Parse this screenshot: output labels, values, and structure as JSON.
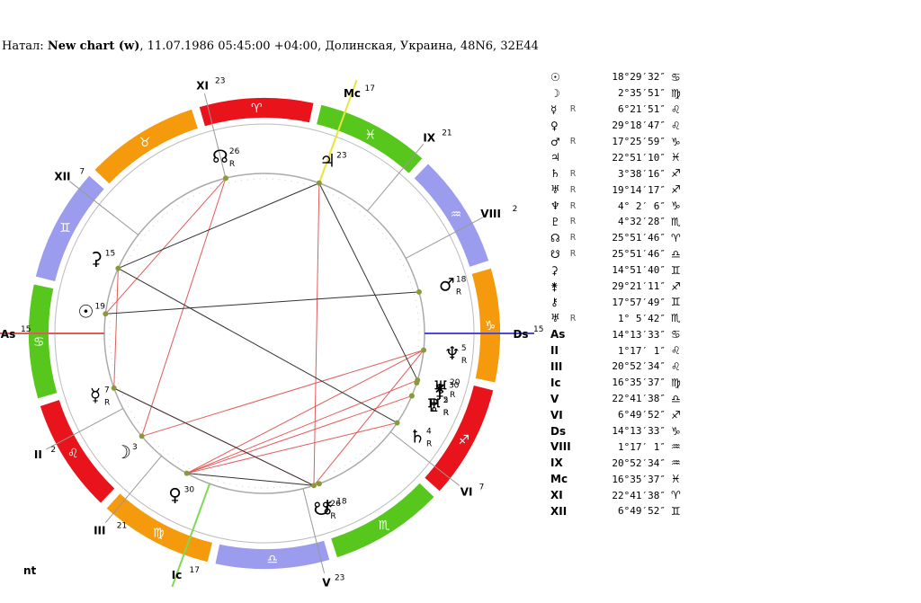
{
  "header": {
    "prefix": "Натал: ",
    "name": "New chart (w)",
    "details": ", 11.07.1986 05:45:00 +04:00, Долинская, Украина, 48N6, 32E44"
  },
  "footer": "nt",
  "colors": {
    "fire": "#e8131b",
    "earth": "#f59a0c",
    "air": "#9c9cee",
    "water": "#58c71d",
    "aspect_red": "#e35a5a",
    "aspect_black": "#333333",
    "axis_asc": "#e35a5a",
    "axis_dsc": "#4a4adb",
    "axis_mc": "#e6e63a",
    "axis_ic": "#7ed957"
  },
  "zodiac": [
    {
      "sign": "♋",
      "color": "water"
    },
    {
      "sign": "♌",
      "color": "fire"
    },
    {
      "sign": "♍",
      "color": "earth"
    },
    {
      "sign": "♎",
      "color": "air"
    },
    {
      "sign": "♏",
      "color": "water"
    },
    {
      "sign": "♐",
      "color": "fire"
    },
    {
      "sign": "♑",
      "color": "earth"
    },
    {
      "sign": "♒",
      "color": "air"
    },
    {
      "sign": "♓",
      "color": "water"
    },
    {
      "sign": "♈",
      "color": "fire"
    },
    {
      "sign": "♉",
      "color": "earth"
    },
    {
      "sign": "♊",
      "color": "air"
    }
  ],
  "cusp_labels": [
    {
      "label": "As",
      "deg": "15"
    },
    {
      "label": "II",
      "deg": "2"
    },
    {
      "label": "III",
      "deg": "21"
    },
    {
      "label": "Ic",
      "deg": "17"
    },
    {
      "label": "V",
      "deg": "23"
    },
    {
      "label": "VI",
      "deg": "7"
    },
    {
      "label": "Ds",
      "deg": "15"
    },
    {
      "label": "VIII",
      "deg": "2"
    },
    {
      "label": "IX",
      "deg": "21"
    },
    {
      "label": "Mc",
      "deg": "17"
    },
    {
      "label": "XI",
      "deg": "23"
    },
    {
      "label": "XII",
      "deg": "7"
    }
  ],
  "planets": [
    {
      "glyph": "☉",
      "deg": "19",
      "retro": false
    },
    {
      "glyph": "☽",
      "deg": "3",
      "retro": false
    },
    {
      "glyph": "☿",
      "deg": "7",
      "retro": true
    },
    {
      "glyph": "♀",
      "deg": "30",
      "retro": false
    },
    {
      "glyph": "♂",
      "deg": "18",
      "retro": true
    },
    {
      "glyph": "♃",
      "deg": "23",
      "retro": false
    },
    {
      "glyph": "♄",
      "deg": "4",
      "retro": true
    },
    {
      "glyph": "♅",
      "deg": "20",
      "retro": true
    },
    {
      "glyph": "♆",
      "deg": "5",
      "retro": true
    },
    {
      "glyph": "♇",
      "deg": "5",
      "retro": true
    },
    {
      "glyph": "☊",
      "deg": "26",
      "retro": true
    },
    {
      "glyph": "☋",
      "deg": "26",
      "retro": true
    },
    {
      "glyph": "⚳",
      "deg": "15",
      "retro": false
    },
    {
      "glyph": "⚵",
      "deg": "30",
      "retro": false
    },
    {
      "glyph": "⚷",
      "deg": "18",
      "retro": false
    },
    {
      "glyph": "♅",
      "deg": "2",
      "retro": true
    }
  ],
  "positions": [
    {
      "glyph": "☉",
      "retro": "",
      "value": "18°29′32″",
      "sign": "♋"
    },
    {
      "glyph": "☽",
      "retro": "",
      "value": "2°35′51″",
      "sign": "♍"
    },
    {
      "glyph": "☿",
      "retro": "R",
      "value": "6°21′51″",
      "sign": "♌"
    },
    {
      "glyph": "♀",
      "retro": "",
      "value": "29°18′47″",
      "sign": "♌"
    },
    {
      "glyph": "♂",
      "retro": "R",
      "value": "17°25′59″",
      "sign": "♑"
    },
    {
      "glyph": "♃",
      "retro": "",
      "value": "22°51′10″",
      "sign": "♓"
    },
    {
      "glyph": "♄",
      "retro": "R",
      "value": "3°38′16″",
      "sign": "♐"
    },
    {
      "glyph": "♅",
      "retro": "R",
      "value": "19°14′17″",
      "sign": "♐"
    },
    {
      "glyph": "♆",
      "retro": "R",
      "value": "4° 2′ 6″",
      "sign": "♑"
    },
    {
      "glyph": "♇",
      "retro": "R",
      "value": "4°32′28″",
      "sign": "♏"
    },
    {
      "glyph": "☊",
      "retro": "R",
      "value": "25°51′46″",
      "sign": "♈"
    },
    {
      "glyph": "☋",
      "retro": "R",
      "value": "25°51′46″",
      "sign": "♎"
    },
    {
      "glyph": "⚳",
      "retro": "",
      "value": "14°51′40″",
      "sign": "♊"
    },
    {
      "glyph": "⚵",
      "retro": "",
      "value": "29°21′11″",
      "sign": "♐"
    },
    {
      "glyph": "⚷",
      "retro": "",
      "value": "17°57′49″",
      "sign": "♊"
    },
    {
      "glyph": "♅",
      "retro": "R",
      "value": "1° 5′42″",
      "sign": "♏"
    },
    {
      "glyph": "As",
      "retro": "",
      "value": "14°13′33″",
      "sign": "♋"
    },
    {
      "glyph": "II",
      "retro": "",
      "value": "1°17′ 1″",
      "sign": "♌"
    },
    {
      "glyph": "III",
      "retro": "",
      "value": "20°52′34″",
      "sign": "♌"
    },
    {
      "glyph": "Ic",
      "retro": "",
      "value": "16°35′37″",
      "sign": "♍"
    },
    {
      "glyph": "V",
      "retro": "",
      "value": "22°41′38″",
      "sign": "♎"
    },
    {
      "glyph": "VI",
      "retro": "",
      "value": "6°49′52″",
      "sign": "♐"
    },
    {
      "glyph": "Ds",
      "retro": "",
      "value": "14°13′33″",
      "sign": "♑"
    },
    {
      "glyph": "VIII",
      "retro": "",
      "value": "1°17′ 1″",
      "sign": "♒"
    },
    {
      "glyph": "IX",
      "retro": "",
      "value": "20°52′34″",
      "sign": "♒"
    },
    {
      "glyph": "Mc",
      "retro": "",
      "value": "16°35′37″",
      "sign": "♓"
    },
    {
      "glyph": "XI",
      "retro": "",
      "value": "22°41′38″",
      "sign": "♈"
    },
    {
      "glyph": "XII",
      "retro": "",
      "value": "6°49′52″",
      "sign": "♊"
    }
  ]
}
